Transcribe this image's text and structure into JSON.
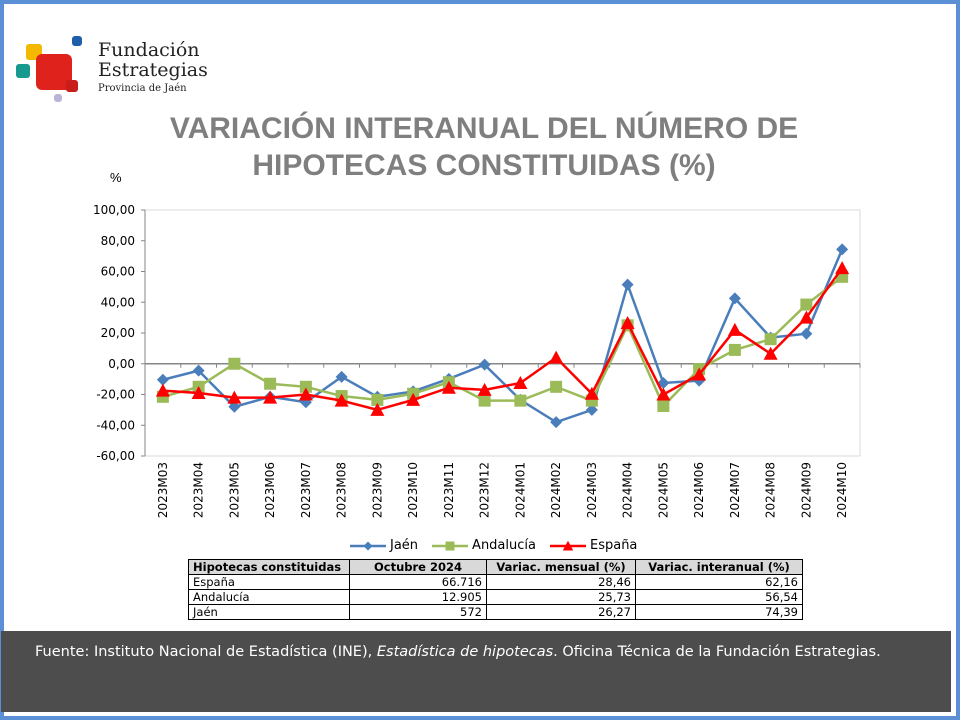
{
  "logo": {
    "line1": "Fundación",
    "line2": "Estrategias",
    "line3": "Provincia de Jaén"
  },
  "title_line1": "VARIACIÓN INTERANUAL DEL NÚMERO DE",
  "title_line2": "HIPOTECAS CONSTITUIDAS (%)",
  "chart_data": {
    "type": "line",
    "ylabel": "%",
    "ylim": [
      -60,
      100
    ],
    "yticks": [
      "100,00",
      "80,00",
      "60,00",
      "40,00",
      "20,00",
      "0,00",
      "-20,00",
      "-40,00",
      "-60,00"
    ],
    "ytick_values": [
      100,
      80,
      60,
      40,
      20,
      0,
      -20,
      -40,
      -60
    ],
    "grid": false,
    "legend": "bottom",
    "categories": [
      "2023M03",
      "2023M04",
      "2023M05",
      "2023M06",
      "2023M07",
      "2023M08",
      "2023M09",
      "2023M10",
      "2023M11",
      "2023M12",
      "2024M01",
      "2024M02",
      "2024M03",
      "2024M04",
      "2024M05",
      "2024M06",
      "2024M07",
      "2024M08",
      "2024M09",
      "2024M10"
    ],
    "series": [
      {
        "name": "Jaén",
        "color": "#4a7ebb",
        "marker": "diamond",
        "values": [
          -10.4,
          -4.5,
          -28,
          -21.5,
          -25,
          -8.5,
          -21.5,
          -18,
          -9.8,
          -0.6,
          -23.5,
          -38,
          -30,
          51.5,
          -12.5,
          -11,
          42.5,
          17,
          19.5,
          74.39
        ]
      },
      {
        "name": "Andalucía",
        "color": "#9bbb59",
        "marker": "square",
        "values": [
          -21.5,
          -15,
          0,
          -13,
          -15,
          -21,
          -23.5,
          -19.5,
          -12,
          -24,
          -24,
          -15,
          -24,
          25,
          -27.5,
          -3.5,
          9,
          16,
          38.5,
          56.54
        ]
      },
      {
        "name": "España",
        "color": "#ff0000",
        "marker": "triangle",
        "values": [
          -17.5,
          -19,
          -22,
          -22,
          -20,
          -24,
          -30,
          -23.5,
          -15.6,
          -17,
          -12.5,
          4,
          -19.5,
          26.5,
          -20,
          -7,
          22,
          6.5,
          30,
          62.16
        ]
      }
    ]
  },
  "table": {
    "headers": [
      "Hipotecas constituidas",
      "Octubre 2024",
      "Variac. mensual (%)",
      "Variac. interanual (%)"
    ],
    "rows": [
      [
        "España",
        "66.716",
        "28,46",
        "62,16"
      ],
      [
        "Andalucía",
        "12.905",
        "25,73",
        "56,54"
      ],
      [
        "Jaén",
        "572",
        "26,27",
        "74,39"
      ]
    ]
  },
  "footer": {
    "part1": "Fuente: Instituto Nacional de Estadística (INE), ",
    "part2_italic": "Estadística de hipotecas",
    "part3": ". Oficina Técnica de la Fundación Estrategias."
  }
}
